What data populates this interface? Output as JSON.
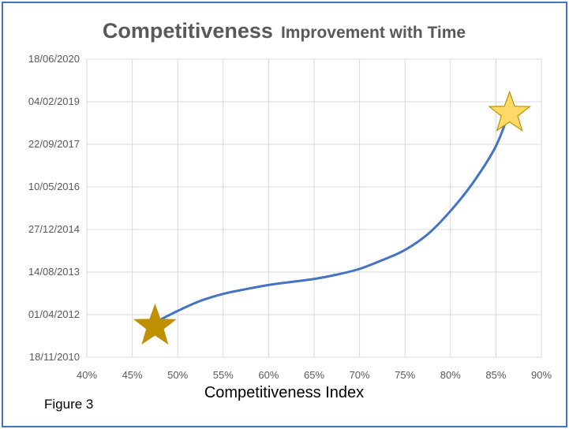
{
  "chart_data": {
    "type": "line",
    "title": "Competitiveness",
    "subtitle": "Improvement with Time",
    "xlabel": "Competitiveness Index",
    "ylabel": "",
    "caption": "Figure 3",
    "xlim": [
      0.4,
      0.9
    ],
    "x_ticks": [
      0.4,
      0.45,
      0.5,
      0.55,
      0.6,
      0.65,
      0.7,
      0.75,
      0.8,
      0.85,
      0.9
    ],
    "x_tick_labels": [
      "40%",
      "45%",
      "50%",
      "55%",
      "60%",
      "65%",
      "70%",
      "75%",
      "80%",
      "85%",
      "90%"
    ],
    "ylim": [
      "2010-11-18",
      "2020-06-18"
    ],
    "y_ticks": [
      "2010-11-18",
      "2012-04-01",
      "2013-08-14",
      "2014-12-27",
      "2016-05-10",
      "2017-09-22",
      "2019-02-04",
      "2020-06-18"
    ],
    "y_tick_labels": [
      "18/11/2010",
      "01/04/2012",
      "14/08/2013",
      "27/12/2014",
      "10/05/2016",
      "22/09/2017",
      "04/02/2019",
      "18/06/2020"
    ],
    "grid": true,
    "series": [
      {
        "color": "#4472c4",
        "x": [
          0.475,
          0.5,
          0.525,
          0.55,
          0.575,
          0.6,
          0.625,
          0.65,
          0.675,
          0.7,
          0.725,
          0.75,
          0.775,
          0.8,
          0.825,
          0.85,
          0.865
        ],
        "y": [
          "2012-01-01",
          "2012-05-15",
          "2012-09-10",
          "2012-12-01",
          "2013-01-25",
          "2013-03-15",
          "2013-04-20",
          "2013-05-25",
          "2013-07-15",
          "2013-09-20",
          "2014-01-01",
          "2014-05-01",
          "2014-11-01",
          "2015-08-01",
          "2016-07-01",
          "2017-09-01",
          "2018-10-20"
        ]
      }
    ],
    "markers": [
      {
        "name": "start-star",
        "x": 0.475,
        "y": "2011-12-15",
        "color": "#bf9000"
      },
      {
        "name": "end-star",
        "x": 0.865,
        "y": "2018-10-20",
        "color": "#ffd966"
      }
    ]
  }
}
